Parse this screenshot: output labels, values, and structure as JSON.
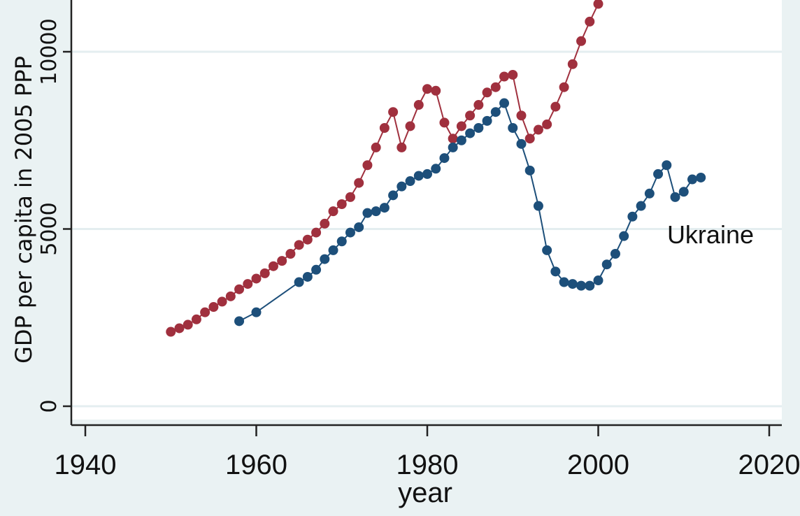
{
  "chart_data": {
    "type": "line",
    "title": "",
    "xlabel": "year",
    "ylabel": "GDP per capita in 2005 PPP",
    "xlim": [
      1940,
      2020
    ],
    "ylim": [
      0,
      11500
    ],
    "x_ticks": [
      1940,
      1960,
      1980,
      2000,
      2020
    ],
    "y_ticks": [
      0,
      5000,
      10000
    ],
    "y_tick_labels": [
      "0",
      "5000",
      "10000"
    ],
    "x_tick_labels": [
      "1940",
      "1960",
      "1980",
      "2000",
      "2020"
    ],
    "grid": "horizontal",
    "colors": {
      "red_series": "#a0303e",
      "blue_series": "#1d4f7a",
      "background": "#eaf2f3",
      "plot_bg": "#ffffff"
    },
    "series": [
      {
        "label_text": "",
        "color": "#a0303e",
        "points": [
          [
            1950,
            2100
          ],
          [
            1951,
            2200
          ],
          [
            1952,
            2300
          ],
          [
            1953,
            2450
          ],
          [
            1954,
            2650
          ],
          [
            1955,
            2800
          ],
          [
            1956,
            2950
          ],
          [
            1957,
            3100
          ],
          [
            1958,
            3300
          ],
          [
            1959,
            3450
          ],
          [
            1960,
            3600
          ],
          [
            1961,
            3750
          ],
          [
            1962,
            3950
          ],
          [
            1963,
            4100
          ],
          [
            1964,
            4300
          ],
          [
            1965,
            4550
          ],
          [
            1966,
            4700
          ],
          [
            1967,
            4900
          ],
          [
            1968,
            5150
          ],
          [
            1969,
            5500
          ],
          [
            1970,
            5700
          ],
          [
            1971,
            5900
          ],
          [
            1972,
            6300
          ],
          [
            1973,
            6800
          ],
          [
            1974,
            7300
          ],
          [
            1975,
            7850
          ],
          [
            1976,
            8300
          ],
          [
            1977,
            7300
          ],
          [
            1978,
            7900
          ],
          [
            1979,
            8500
          ],
          [
            1980,
            8950
          ],
          [
            1981,
            8900
          ],
          [
            1982,
            8000
          ],
          [
            1983,
            7550
          ],
          [
            1984,
            7900
          ],
          [
            1985,
            8200
          ],
          [
            1986,
            8500
          ],
          [
            1987,
            8850
          ],
          [
            1988,
            9000
          ],
          [
            1989,
            9300
          ],
          [
            1990,
            9350
          ],
          [
            1991,
            8200
          ],
          [
            1992,
            7550
          ],
          [
            1993,
            7800
          ],
          [
            1994,
            7950
          ],
          [
            1995,
            8450
          ],
          [
            1996,
            9000
          ],
          [
            1997,
            9650
          ],
          [
            1998,
            10300
          ],
          [
            1999,
            10850
          ],
          [
            2000,
            11350
          ]
        ]
      },
      {
        "label_text": "Ukraine",
        "color": "#1d4f7a",
        "points": [
          [
            1958,
            2400
          ],
          [
            1960,
            2650
          ],
          [
            1965,
            3500
          ],
          [
            1966,
            3650
          ],
          [
            1967,
            3850
          ],
          [
            1968,
            4150
          ],
          [
            1969,
            4400
          ],
          [
            1970,
            4650
          ],
          [
            1971,
            4900
          ],
          [
            1972,
            5050
          ],
          [
            1973,
            5450
          ],
          [
            1974,
            5500
          ],
          [
            1975,
            5600
          ],
          [
            1976,
            5950
          ],
          [
            1977,
            6200
          ],
          [
            1978,
            6350
          ],
          [
            1979,
            6500
          ],
          [
            1980,
            6550
          ],
          [
            1981,
            6700
          ],
          [
            1982,
            7000
          ],
          [
            1983,
            7300
          ],
          [
            1984,
            7500
          ],
          [
            1985,
            7700
          ],
          [
            1986,
            7850
          ],
          [
            1987,
            8050
          ],
          [
            1988,
            8300
          ],
          [
            1989,
            8550
          ],
          [
            1990,
            7850
          ],
          [
            1991,
            7400
          ],
          [
            1992,
            6650
          ],
          [
            1993,
            5650
          ],
          [
            1994,
            4400
          ],
          [
            1995,
            3800
          ],
          [
            1996,
            3500
          ],
          [
            1997,
            3450
          ],
          [
            1998,
            3400
          ],
          [
            1999,
            3400
          ],
          [
            2000,
            3550
          ],
          [
            2001,
            4000
          ],
          [
            2002,
            4300
          ],
          [
            2003,
            4800
          ],
          [
            2004,
            5350
          ],
          [
            2005,
            5650
          ],
          [
            2006,
            6000
          ],
          [
            2007,
            6550
          ],
          [
            2008,
            6800
          ],
          [
            2009,
            5900
          ],
          [
            2010,
            6050
          ],
          [
            2011,
            6400
          ],
          [
            2012,
            6450
          ]
        ]
      }
    ]
  }
}
